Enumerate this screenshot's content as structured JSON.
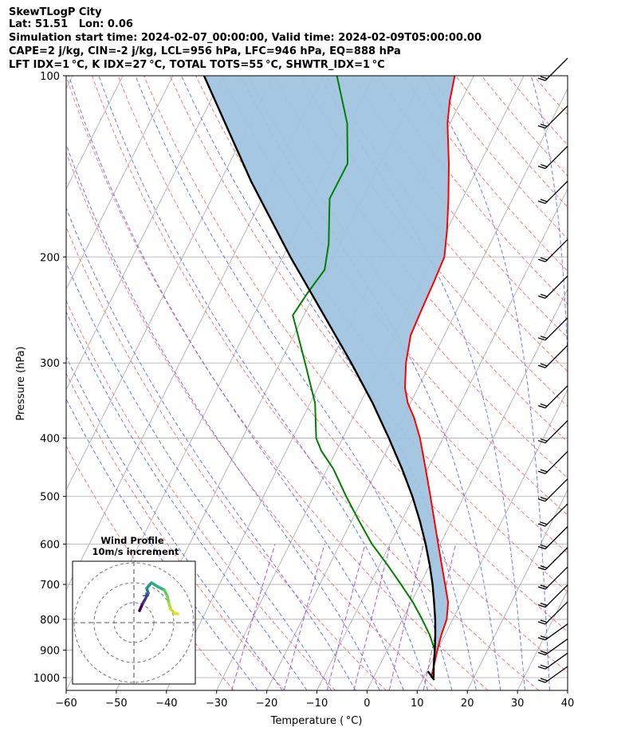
{
  "header": {
    "line1": "SkewTLogP City",
    "line2": "Lat: 51.51   Lon: 0.06",
    "line3": "Simulation start time: 2024-02-07_00:00:00, Valid time: 2024-02-09T05:00:00.00",
    "line4": "CAPE=2 j/kg, CIN=-2 j/kg, LCL=956 hPa, LFC=946 hPa, EQ=888 hPa",
    "line5": "LFT IDX=1 °C, K IDX=27 °C, TOTAL TOTS=55 °C, SHWTR_IDX=1 °C"
  },
  "inset": {
    "title1": "Wind Profile",
    "title2": "10m/s increment"
  },
  "colors": {
    "temperature": "#ff0000",
    "dewpoint": "#008000",
    "parcel": "#000000",
    "cape_fill": "#a0c4df",
    "dry_adiabat": "#ff6b6b",
    "moist_adiabat": "#5a6cff",
    "mixing_ratio": "#9b3fd3",
    "isotherm": "#aaaaaa"
  },
  "chart_data": {
    "type": "line",
    "title": "SkewTLogP City",
    "xlabel": "Temperature ( °C)",
    "ylabel": "Pressure (hPa)",
    "xlim": [
      -60,
      40
    ],
    "ylim": [
      1050,
      100
    ],
    "y_scale": "log",
    "grid": true,
    "x_ticks": [
      "−60",
      "−50",
      "−40",
      "−30",
      "−20",
      "−10",
      "0",
      "10",
      "20",
      "30",
      "40"
    ],
    "y_ticks": [
      "100",
      "200",
      "300",
      "400",
      "500",
      "600",
      "700",
      "800",
      "900",
      "1000"
    ],
    "series": [
      {
        "type": "line",
        "values": [
          [
            1000,
            11.5
          ],
          [
            950,
            10.8
          ],
          [
            900,
            10.0
          ],
          [
            850,
            9.3
          ],
          [
            800,
            8.8
          ],
          [
            750,
            7.4
          ],
          [
            700,
            5.0
          ],
          [
            650,
            2.4
          ],
          [
            600,
            -0.4
          ],
          [
            550,
            -3.4
          ],
          [
            500,
            -6.7
          ],
          [
            450,
            -10.4
          ],
          [
            400,
            -14.6
          ],
          [
            370,
            -17.8
          ],
          [
            350,
            -20.5
          ],
          [
            330,
            -22.6
          ],
          [
            300,
            -24.9
          ],
          [
            270,
            -26.7
          ],
          [
            250,
            -27.0
          ],
          [
            220,
            -27.4
          ],
          [
            200,
            -27.8
          ],
          [
            180,
            -30.0
          ],
          [
            160,
            -32.8
          ],
          [
            140,
            -36.2
          ],
          [
            120,
            -40.5
          ],
          [
            110,
            -42.3
          ],
          [
            100,
            -43.8
          ]
        ]
      },
      {
        "type": "line",
        "values": [
          [
            900,
            9.5
          ],
          [
            850,
            7.0
          ],
          [
            800,
            3.9
          ],
          [
            750,
            0.4
          ],
          [
            700,
            -3.8
          ],
          [
            650,
            -8.4
          ],
          [
            600,
            -13.6
          ],
          [
            550,
            -18.4
          ],
          [
            500,
            -23.5
          ],
          [
            450,
            -28.8
          ],
          [
            420,
            -33.0
          ],
          [
            400,
            -35.3
          ],
          [
            350,
            -39.0
          ],
          [
            300,
            -45.0
          ],
          [
            250,
            -52.2
          ],
          [
            230,
            -51.5
          ],
          [
            210,
            -50.4
          ],
          [
            190,
            -52.2
          ],
          [
            170,
            -55.0
          ],
          [
            160,
            -56.5
          ],
          [
            140,
            -56.4
          ],
          [
            120,
            -60.5
          ],
          [
            100,
            -67.3
          ]
        ]
      },
      {
        "type": "line",
        "values": [
          [
            1000,
            12.0
          ],
          [
            950,
            10.7
          ],
          [
            900,
            9.5
          ],
          [
            850,
            8.1
          ],
          [
            800,
            6.5
          ],
          [
            750,
            4.6
          ],
          [
            700,
            2.5
          ],
          [
            650,
            0.0
          ],
          [
            600,
            -2.9
          ],
          [
            550,
            -6.3
          ],
          [
            500,
            -10.3
          ],
          [
            450,
            -15.1
          ],
          [
            400,
            -20.8
          ],
          [
            350,
            -27.5
          ],
          [
            300,
            -35.8
          ],
          [
            250,
            -46.0
          ],
          [
            200,
            -58.5
          ],
          [
            150,
            -73.8
          ],
          [
            100,
            -93.8
          ]
        ]
      }
    ],
    "wind_barbs_pressure": [
      100,
      120,
      140,
      160,
      200,
      230,
      270,
      300,
      350,
      400,
      450,
      500,
      550,
      600,
      650,
      700,
      750,
      800,
      850,
      900,
      950,
      1000
    ],
    "hodograph_ring_step_ms": 10
  }
}
